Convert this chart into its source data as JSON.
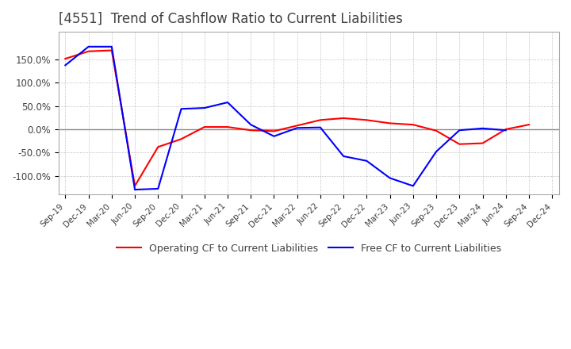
{
  "title": "[4551]  Trend of Cashflow Ratio to Current Liabilities",
  "title_color": "#404040",
  "background_color": "#ffffff",
  "plot_bg_color": "#ffffff",
  "grid_color": "#aaaaaa",
  "x_labels": [
    "Sep-19",
    "Dec-19",
    "Mar-20",
    "Jun-20",
    "Sep-20",
    "Dec-20",
    "Mar-21",
    "Jun-21",
    "Sep-21",
    "Dec-21",
    "Mar-22",
    "Jun-22",
    "Sep-22",
    "Dec-22",
    "Mar-23",
    "Jun-23",
    "Sep-23",
    "Dec-23",
    "Mar-24",
    "Jun-24",
    "Sep-24",
    "Dec-24"
  ],
  "operating_cf": [
    1.52,
    1.68,
    1.7,
    -1.22,
    -0.38,
    -0.21,
    0.05,
    0.05,
    -0.02,
    -0.04,
    0.08,
    0.2,
    0.24,
    0.2,
    0.13,
    0.1,
    -0.03,
    -0.32,
    -0.3,
    0.0,
    0.1,
    null
  ],
  "free_cf": [
    1.38,
    1.78,
    1.78,
    -1.3,
    -1.28,
    0.44,
    0.46,
    0.58,
    0.1,
    -0.15,
    0.03,
    0.04,
    -0.58,
    -0.68,
    -1.05,
    -1.22,
    -0.48,
    -0.02,
    0.02,
    -0.02,
    null,
    null
  ],
  "operating_color": "#ff0000",
  "free_color": "#0000ff",
  "ylim": [
    -1.4,
    2.1
  ],
  "yticks": [
    -1.0,
    -0.5,
    0.0,
    0.5,
    1.0,
    1.5
  ],
  "ytick_labels": [
    "-100.0%",
    "-50.0%",
    "0.0%",
    "50.0%",
    "100.0%",
    "150.0%"
  ],
  "legend_op": "Operating CF to Current Liabilities",
  "legend_free": "Free CF to Current Liabilities"
}
